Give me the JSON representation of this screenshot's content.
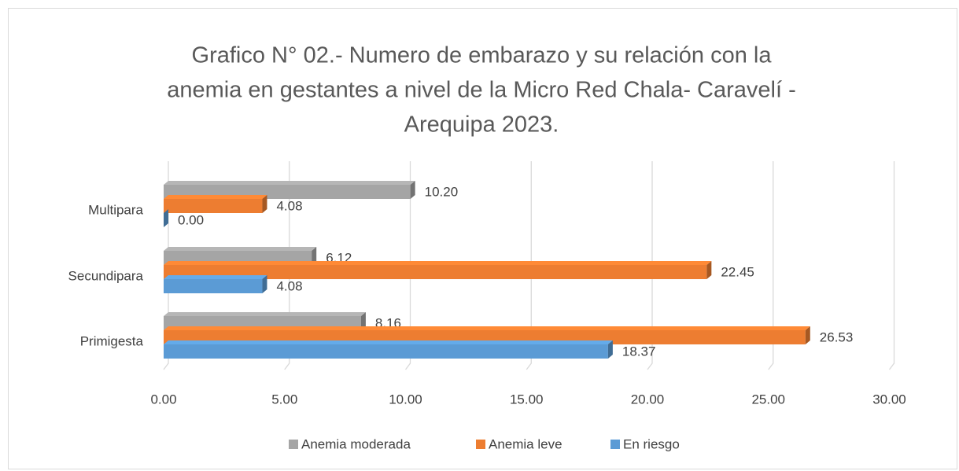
{
  "chart_data": {
    "type": "bar3d_horizontal",
    "title": [
      "Grafico N° 02.- Numero de embarazo y su relación con la",
      "anemia en gestantes a nivel de la Micro Red Chala- Caravelí -",
      "Arequipa 2023."
    ],
    "categories": [
      "Primigesta",
      "Secundipara",
      "Multipara"
    ],
    "series": [
      {
        "name": "Anemia moderada",
        "color": "#a5a5a5",
        "values": [
          8.16,
          6.12,
          10.2
        ],
        "value_labels": [
          "8.16",
          "6.12",
          "10.20"
        ]
      },
      {
        "name": "Anemia leve",
        "color": "#ed7d31",
        "values": [
          26.53,
          22.45,
          4.08
        ],
        "value_labels": [
          "26.53",
          "22.45",
          "4.08"
        ]
      },
      {
        "name": "En riesgo",
        "color": "#5b9bd5",
        "values": [
          18.37,
          4.08,
          0.0
        ],
        "value_labels": [
          "18.37",
          "4.08",
          "0.00"
        ]
      }
    ],
    "xlim": [
      0,
      30
    ],
    "xticks": [
      {
        "value": 0,
        "label": "0.00"
      },
      {
        "value": 5,
        "label": "5.00"
      },
      {
        "value": 10,
        "label": "10.00"
      },
      {
        "value": 15,
        "label": "15.00"
      },
      {
        "value": 20,
        "label": "20.00"
      },
      {
        "value": 25,
        "label": "25.00"
      },
      {
        "value": 30,
        "label": "30.00"
      }
    ],
    "grid": true,
    "legend": "bottom"
  }
}
